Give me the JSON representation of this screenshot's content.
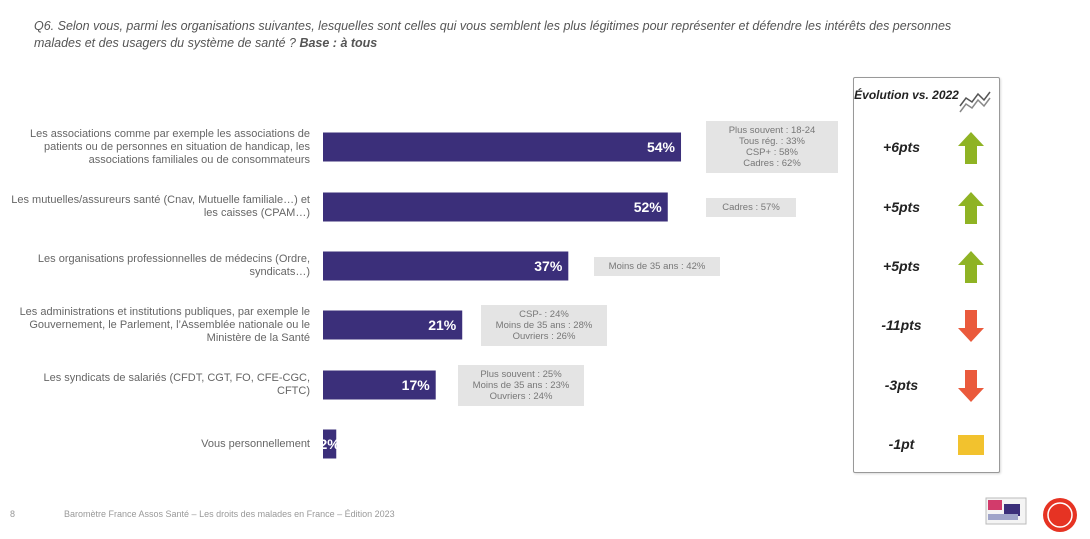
{
  "question": {
    "text": "Q6. Selon vous, parmi les organisations suivantes, lesquelles sont celles qui vous semblent les plus légitimes pour représenter et défendre les intérêts des personnes malades et des usagers du système de santé ?",
    "base": "Base : à tous"
  },
  "footer": {
    "page": "8",
    "source": "Baromètre France Assos Santé – Les droits des malades en France – Édition 2023"
  },
  "chart_data": {
    "type": "bar",
    "orientation": "horizontal",
    "categories": [
      "Les associations comme par exemple les associations de patients ou de personnes en situation de handicap, les associations familiales ou de consommateurs",
      "Les mutuelles/assureurs santé (Cnav, Mutuelle familiale…) et les caisses (CPAM…)",
      "Les organisations professionnelles de médecins (Ordre, syndicats…)",
      "Les administrations et institutions publiques, par exemple le Gouvernement, le Parlement, l’Assemblée nationale ou le Ministère de la Santé",
      "Les syndicats de salariés (CFDT, CGT, FO, CFE-CGC, CFTC)",
      "Vous personnellement"
    ],
    "values": [
      54,
      52,
      37,
      21,
      17,
      2
    ],
    "value_labels": [
      "54%",
      "52%",
      "37%",
      "21%",
      "17%",
      "2%"
    ],
    "bar_color": "#3b2f7a",
    "xlim": [
      0,
      100
    ],
    "grid": false
  },
  "subgroups": [
    [
      "Plus souvent : 18-24",
      "Tous rég. : 33%",
      "CSP+ : 58%",
      "Cadres : 62%"
    ],
    [
      "Cadres : 57%"
    ],
    [
      "Moins de 35 ans : 42%"
    ],
    [
      "CSP- : 24%",
      "Moins de 35 ans : 28%",
      "Ouvriers : 26%"
    ],
    [
      "Plus souvent : 25%",
      "Moins de 35 ans : 23%",
      "Ouvriers : 24%"
    ],
    []
  ],
  "evolution": {
    "title": "Évolution vs. 2022",
    "items": [
      {
        "value": "+6pts",
        "direction": "up",
        "color": "#8fb324"
      },
      {
        "value": "+5pts",
        "direction": "up",
        "color": "#8fb324"
      },
      {
        "value": "+5pts",
        "direction": "up",
        "color": "#8fb324"
      },
      {
        "value": "-11pts",
        "direction": "down",
        "color": "#ea5a3c"
      },
      {
        "value": "-3pts",
        "direction": "down",
        "color": "#ea5a3c"
      },
      {
        "value": "-1pt",
        "direction": "flat",
        "color": "#f2c22e"
      }
    ]
  }
}
